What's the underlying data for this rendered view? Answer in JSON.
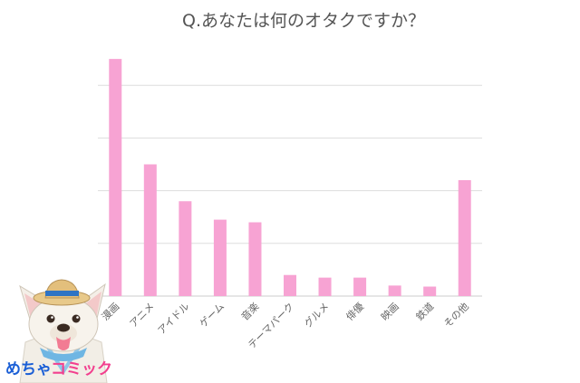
{
  "chart_data": {
    "type": "bar",
    "title": "Q.あなたは何のオタクですか？",
    "categories": [
      "漫画",
      "アニメ",
      "アイドル",
      "ゲーム",
      "音楽",
      "テーマパーク",
      "グルメ",
      "俳優",
      "映画",
      "鉄道",
      "その他"
    ],
    "values": [
      45,
      25,
      18,
      14.5,
      14,
      4,
      3.5,
      3.5,
      2,
      1.8,
      22
    ],
    "ylim": [
      0,
      50
    ],
    "ytick_step": 10,
    "grid": true,
    "bar_color": "#f7a3d3",
    "grid_color": "#dddddd"
  },
  "logo": {
    "text_left": "めちゃ",
    "text_right": "コミック",
    "color_left": "#1b5fd6",
    "color_right": "#f23f8e"
  }
}
